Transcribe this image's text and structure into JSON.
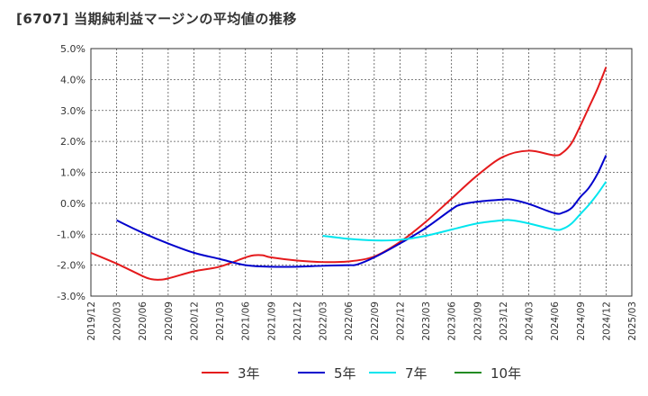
{
  "title": "[6707]  当期純利益マージンの平均値の推移",
  "chart_data": {
    "type": "line",
    "y_ticks": [
      "5.0%",
      "4.0%",
      "3.0%",
      "2.0%",
      "1.0%",
      "0.0%",
      "-1.0%",
      "-2.0%",
      "-3.0%"
    ],
    "x_ticks": [
      "2019/12",
      "2020/03",
      "2020/06",
      "2020/09",
      "2020/12",
      "2021/03",
      "2021/06",
      "2021/09",
      "2021/12",
      "2022/03",
      "2022/06",
      "2022/09",
      "2022/12",
      "2023/03",
      "2023/06",
      "2023/09",
      "2023/12",
      "2024/03",
      "2024/06",
      "2024/09",
      "2024/12",
      "2025/03"
    ],
    "ylim": [
      -3.0,
      5.0
    ],
    "grid": true,
    "legend_position": "bottom",
    "series": [
      {
        "name": "3年",
        "color": "#e41a1c",
        "values": [
          [
            "2019/12",
            -1.6
          ],
          [
            "2020/03",
            -1.95
          ],
          [
            "2020/06",
            -2.35
          ],
          [
            "2020/07",
            -2.45
          ],
          [
            "2020/08",
            -2.47
          ],
          [
            "2020/09",
            -2.43
          ],
          [
            "2020/12",
            -2.2
          ],
          [
            "2021/03",
            -2.05
          ],
          [
            "2021/06",
            -1.75
          ],
          [
            "2021/07",
            -1.68
          ],
          [
            "2021/08",
            -1.68
          ],
          [
            "2021/09",
            -1.75
          ],
          [
            "2021/12",
            -1.85
          ],
          [
            "2022/03",
            -1.9
          ],
          [
            "2022/06",
            -1.88
          ],
          [
            "2022/09",
            -1.72
          ],
          [
            "2022/12",
            -1.25
          ],
          [
            "2023/03",
            -0.6
          ],
          [
            "2023/06",
            0.15
          ],
          [
            "2023/09",
            0.9
          ],
          [
            "2023/12",
            1.5
          ],
          [
            "2024/03",
            1.7
          ],
          [
            "2024/06",
            1.55
          ],
          [
            "2024/07",
            1.65
          ],
          [
            "2024/08",
            1.95
          ],
          [
            "2024/09",
            2.5
          ],
          [
            "2024/10",
            3.1
          ],
          [
            "2024/11",
            3.7
          ],
          [
            "2024/12",
            4.4
          ]
        ]
      },
      {
        "name": "5年",
        "color": "#0000cc",
        "values": [
          [
            "2020/03",
            -0.55
          ],
          [
            "2020/06",
            -0.95
          ],
          [
            "2020/09",
            -1.3
          ],
          [
            "2020/12",
            -1.6
          ],
          [
            "2021/03",
            -1.8
          ],
          [
            "2021/06",
            -2.0
          ],
          [
            "2021/09",
            -2.05
          ],
          [
            "2021/12",
            -2.05
          ],
          [
            "2022/03",
            -2.02
          ],
          [
            "2022/06",
            -2.0
          ],
          [
            "2022/07",
            -1.98
          ],
          [
            "2022/09",
            -1.75
          ],
          [
            "2022/12",
            -1.3
          ],
          [
            "2023/03",
            -0.8
          ],
          [
            "2023/06",
            -0.2
          ],
          [
            "2023/07",
            -0.05
          ],
          [
            "2023/09",
            0.05
          ],
          [
            "2023/12",
            0.12
          ],
          [
            "2024/01",
            0.12
          ],
          [
            "2024/03",
            -0.02
          ],
          [
            "2024/06",
            -0.32
          ],
          [
            "2024/07",
            -0.3
          ],
          [
            "2024/08",
            -0.15
          ],
          [
            "2024/09",
            0.2
          ],
          [
            "2024/10",
            0.5
          ],
          [
            "2024/11",
            0.95
          ],
          [
            "2024/12",
            1.55
          ]
        ]
      },
      {
        "name": "7年",
        "color": "#00e5ee",
        "values": [
          [
            "2022/03",
            -1.05
          ],
          [
            "2022/06",
            -1.15
          ],
          [
            "2022/09",
            -1.2
          ],
          [
            "2022/12",
            -1.18
          ],
          [
            "2023/03",
            -1.05
          ],
          [
            "2023/06",
            -0.85
          ],
          [
            "2023/09",
            -0.65
          ],
          [
            "2023/12",
            -0.55
          ],
          [
            "2024/01",
            -0.55
          ],
          [
            "2024/03",
            -0.65
          ],
          [
            "2024/06",
            -0.85
          ],
          [
            "2024/07",
            -0.82
          ],
          [
            "2024/08",
            -0.65
          ],
          [
            "2024/09",
            -0.35
          ],
          [
            "2024/10",
            -0.05
          ],
          [
            "2024/11",
            0.3
          ],
          [
            "2024/12",
            0.7
          ]
        ]
      },
      {
        "name": "10年",
        "color": "#228b22",
        "values": []
      }
    ]
  }
}
